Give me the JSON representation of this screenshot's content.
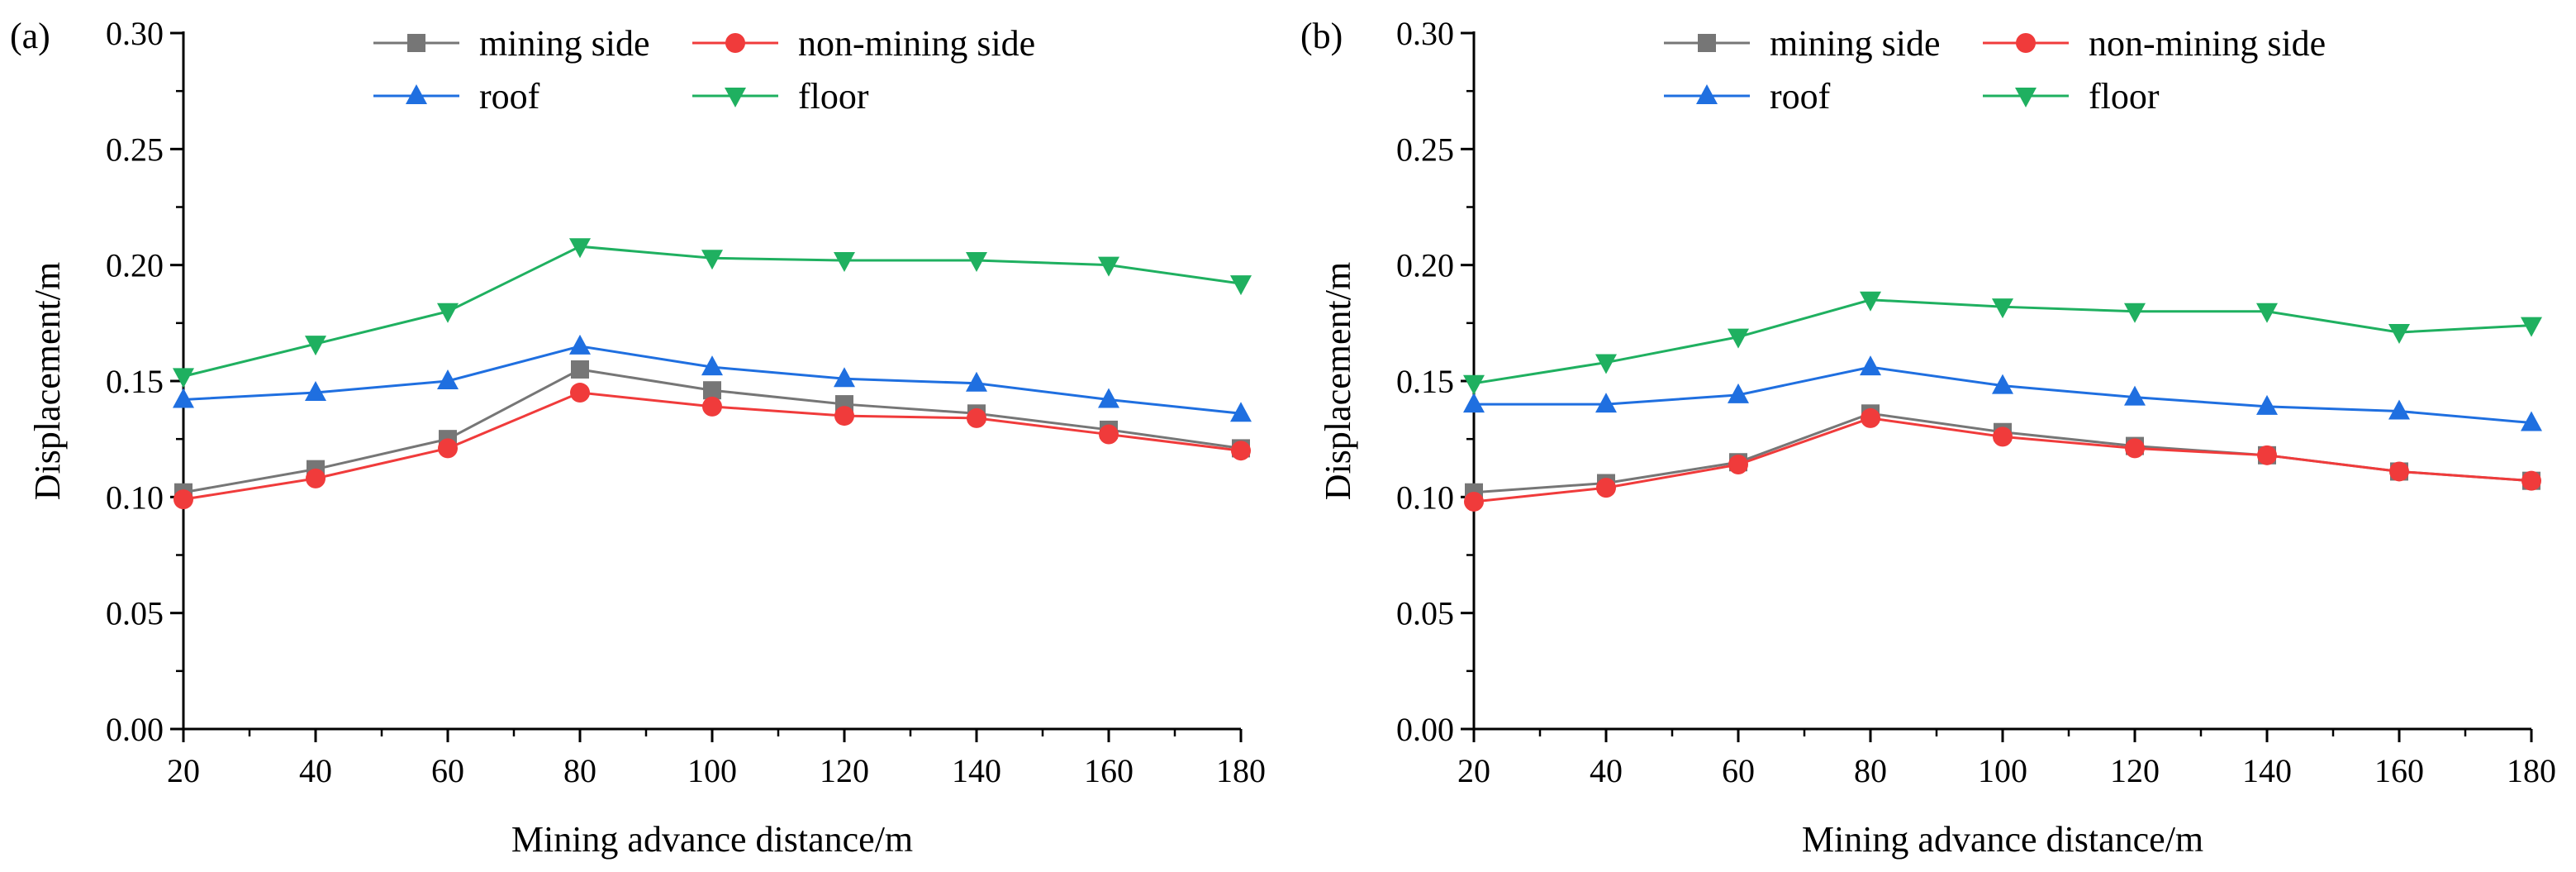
{
  "figure": {
    "panels": [
      "(a)",
      "(b)"
    ]
  },
  "chart_data": [
    {
      "panel_label": "(a)",
      "type": "line",
      "x": [
        20,
        40,
        60,
        80,
        100,
        120,
        140,
        160,
        180
      ],
      "xlabel": "Mining advance distance/m",
      "ylabel": "Displacement/m",
      "xlim": [
        20,
        180
      ],
      "ylim": [
        0,
        0.3
      ],
      "xticks": [
        "20",
        "40",
        "60",
        "80",
        "100",
        "120",
        "140",
        "160",
        "180"
      ],
      "yticks": [
        "0.00",
        "0.05",
        "0.10",
        "0.15",
        "0.20",
        "0.25",
        "0.30"
      ],
      "grid": false,
      "legend_position": "top",
      "series": [
        {
          "name": "mining side",
          "color": "#767676",
          "marker": "square",
          "values": [
            0.102,
            0.112,
            0.125,
            0.155,
            0.146,
            0.14,
            0.136,
            0.129,
            0.121
          ]
        },
        {
          "name": "non-mining side",
          "color": "#f03b3b",
          "marker": "circle",
          "values": [
            0.099,
            0.108,
            0.121,
            0.145,
            0.139,
            0.135,
            0.134,
            0.127,
            0.12
          ]
        },
        {
          "name": "roof",
          "color": "#1f6fe0",
          "marker": "triangle-up",
          "values": [
            0.142,
            0.145,
            0.15,
            0.165,
            0.156,
            0.151,
            0.149,
            0.142,
            0.136
          ]
        },
        {
          "name": "floor",
          "color": "#1fb060",
          "marker": "triangle-down",
          "values": [
            0.152,
            0.166,
            0.18,
            0.208,
            0.203,
            0.202,
            0.202,
            0.2,
            0.192
          ]
        }
      ]
    },
    {
      "panel_label": "(b)",
      "type": "line",
      "x": [
        20,
        40,
        60,
        80,
        100,
        120,
        140,
        160,
        180
      ],
      "xlabel": "Mining advance distance/m",
      "ylabel": "Displacement/m",
      "xlim": [
        20,
        180
      ],
      "ylim": [
        0,
        0.3
      ],
      "xticks": [
        "20",
        "40",
        "60",
        "80",
        "100",
        "120",
        "140",
        "160",
        "180"
      ],
      "yticks": [
        "0.00",
        "0.05",
        "0.10",
        "0.15",
        "0.20",
        "0.25",
        "0.30"
      ],
      "grid": false,
      "legend_position": "top",
      "series": [
        {
          "name": "mining side",
          "color": "#767676",
          "marker": "square",
          "values": [
            0.102,
            0.106,
            0.115,
            0.136,
            0.128,
            0.122,
            0.118,
            0.111,
            0.107
          ]
        },
        {
          "name": "non-mining side",
          "color": "#f03b3b",
          "marker": "circle",
          "values": [
            0.098,
            0.104,
            0.114,
            0.134,
            0.126,
            0.121,
            0.118,
            0.111,
            0.107
          ]
        },
        {
          "name": "roof",
          "color": "#1f6fe0",
          "marker": "triangle-up",
          "values": [
            0.14,
            0.14,
            0.144,
            0.156,
            0.148,
            0.143,
            0.139,
            0.137,
            0.132
          ]
        },
        {
          "name": "floor",
          "color": "#1fb060",
          "marker": "triangle-down",
          "values": [
            0.149,
            0.158,
            0.169,
            0.185,
            0.182,
            0.18,
            0.18,
            0.171,
            0.174
          ]
        }
      ]
    }
  ]
}
